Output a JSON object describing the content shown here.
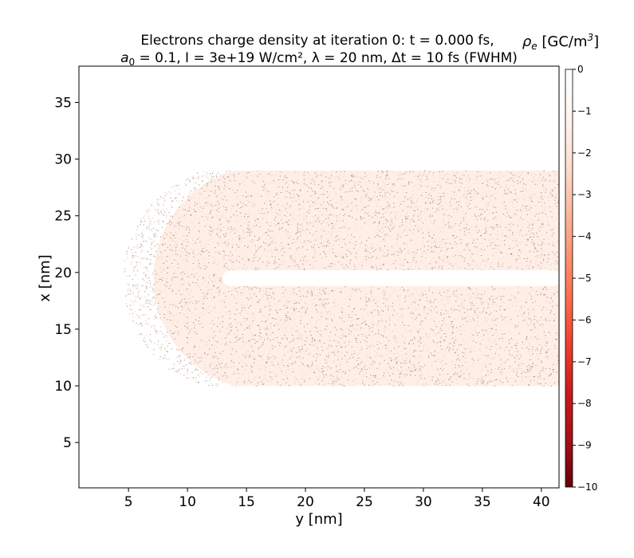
{
  "chart_data": {
    "type": "heatmap",
    "title_line1": "Electrons charge density at iteration 0: t = 0.000 fs,",
    "title_line2_parts": [
      "a",
      "0",
      " = 0.1, I = 3e+19 W/cm², λ = 20 nm, Δt = 10 fs (FWHM)"
    ],
    "xlabel": "y [nm]",
    "ylabel": "x [nm]",
    "xlim": [
      0.8,
      41.5
    ],
    "ylim": [
      1.0,
      38.2
    ],
    "xticks": [
      5,
      10,
      15,
      20,
      25,
      30,
      35,
      40
    ],
    "yticks": [
      5,
      10,
      15,
      20,
      25,
      30,
      35
    ],
    "colorbar": {
      "label_parts": [
        "ρ",
        "e",
        " [GC/m",
        "3",
        "]"
      ],
      "range": [
        -10,
        0
      ],
      "ticks": [
        0,
        -1,
        -2,
        -3,
        -4,
        -5,
        -6,
        -7,
        -8,
        -9,
        -10
      ],
      "colormap": "Reds_r",
      "colors": [
        "#67000d",
        "#a50f15",
        "#cb181d",
        "#ef3b2c",
        "#fb6a4a",
        "#fc9272",
        "#fcbba1",
        "#fee0d2",
        "#fff5f0",
        "#ffffff"
      ]
    },
    "regions": {
      "shape": "semicircle cap joined to a rectangle, with a slit along x = 19.5 nm",
      "cap_center": [
        14.0,
        19.5
      ],
      "cap_radius": 9.5,
      "rect_y": [
        14.0,
        41.5
      ],
      "rect_x": [
        10.0,
        29.0
      ],
      "slit_x": [
        18.8,
        20.2
      ],
      "slit_y_start": 13.0,
      "typical_density": -1.5,
      "background_density": 0
    },
    "grid": false
  }
}
